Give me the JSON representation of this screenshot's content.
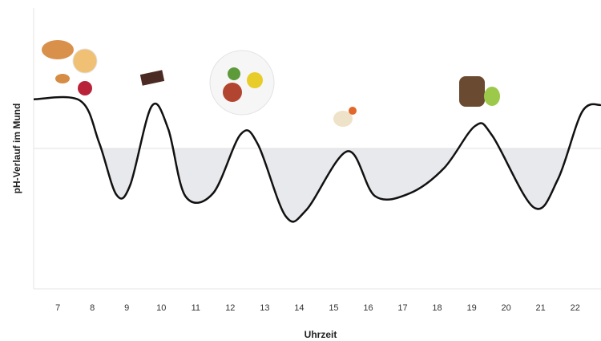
{
  "chart_data": {
    "type": "line",
    "y_label": "pH-Verlauf im Mund",
    "x_label": "Uhrzeit",
    "x": [
      6.3,
      7.65,
      8.2,
      8.7,
      9.1,
      9.72,
      10.2,
      10.7,
      11.5,
      12.3,
      12.8,
      13.6,
      14.2,
      15.4,
      16.2,
      17.2,
      18.2,
      19.1,
      19.6,
      20.8,
      21.5,
      22.2,
      22.75
    ],
    "values": [
      6.75,
      6.7,
      5.2,
      3.35,
      3.7,
      6.5,
      5.7,
      3.3,
      3.4,
      5.5,
      5.15,
      2.6,
      2.8,
      4.9,
      3.3,
      3.4,
      4.3,
      5.8,
      5.45,
      2.9,
      3.9,
      6.3,
      6.55
    ],
    "color": "#111111",
    "reference_line": 5,
    "fill_color": "#e8e9ec",
    "xlim": [
      6.3,
      22.75
    ],
    "ylim": [
      0,
      10
    ],
    "xticks": [
      7,
      8,
      9,
      10,
      11,
      12,
      13,
      14,
      15,
      16,
      17,
      18,
      19,
      20,
      21,
      22
    ]
  }
}
